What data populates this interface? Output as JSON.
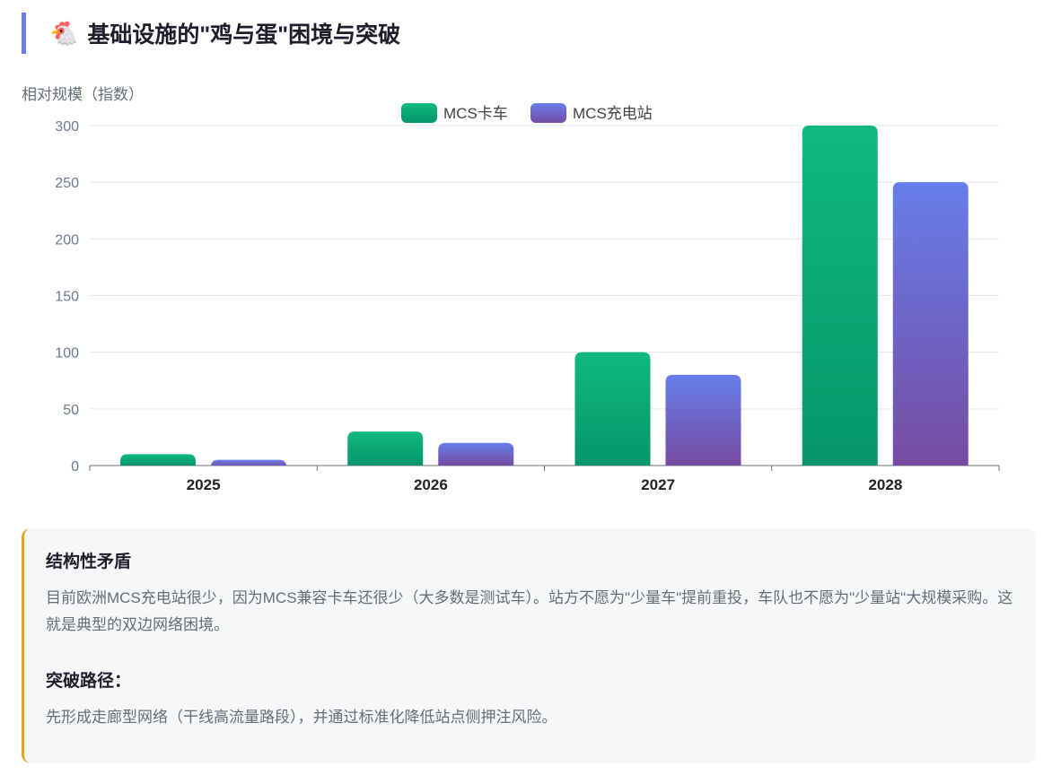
{
  "header": {
    "icon": "🐔",
    "title": "基础设施的\"鸡与蛋\"困境与突破"
  },
  "chart_data": {
    "type": "bar",
    "ylabel": "相对规模（指数）",
    "categories": [
      "2025",
      "2026",
      "2027",
      "2028"
    ],
    "series": [
      {
        "name": "MCS卡车",
        "values": [
          10,
          30,
          100,
          300
        ],
        "color_top": "#10b981",
        "color_bottom": "#059669"
      },
      {
        "name": "MCS充电站",
        "values": [
          5,
          20,
          80,
          250
        ],
        "color_top": "#667eea",
        "color_bottom": "#764ba2"
      }
    ],
    "ylim": [
      0,
      300
    ],
    "yticks": [
      "0",
      "50",
      "100",
      "150",
      "200",
      "250",
      "300"
    ],
    "legend": "top-center",
    "grid": true
  },
  "card": {
    "h1": "结构性矛盾",
    "p1": "目前欧洲MCS充电站很少，因为MCS兼容卡车还很少（大多数是测试车）。站方不愿为\"少量车\"提前重投，车队也不愿为\"少量站\"大规模采购。这就是典型的双边网络困境。",
    "h2": "突破路径：",
    "p2": "先形成走廊型网络（干线高流量路段），并通过标准化降低站点侧押注风险。"
  }
}
